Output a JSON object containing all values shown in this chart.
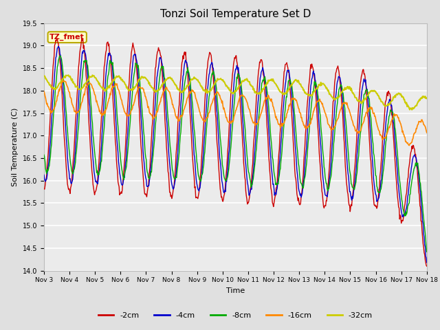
{
  "title": "Tonzi Soil Temperature Set D",
  "xlabel": "Time",
  "ylabel": "Soil Temperature (C)",
  "ylim": [
    14.0,
    19.5
  ],
  "yticks": [
    14.0,
    14.5,
    15.0,
    15.5,
    16.0,
    16.5,
    17.0,
    17.5,
    18.0,
    18.5,
    19.0,
    19.5
  ],
  "xtick_labels": [
    "Nov 3",
    "Nov 4",
    "Nov 5",
    "Nov 6",
    "Nov 7",
    "Nov 8",
    "Nov 9",
    "Nov 10",
    "Nov 11",
    "Nov 12",
    "Nov 13",
    "Nov 14",
    "Nov 15",
    "Nov 16",
    "Nov 17",
    "Nov 18"
  ],
  "legend_labels": [
    "-2cm",
    "-4cm",
    "-8cm",
    "-16cm",
    "-32cm"
  ],
  "legend_colors": [
    "#cc0000",
    "#0000cc",
    "#00aa00",
    "#ff8800",
    "#cccc00"
  ],
  "annotation_text": "TZ_fmet",
  "annotation_color": "#cc0000",
  "annotation_bg": "#ffffcc",
  "annotation_border": "#bbaa00",
  "background_color": "#e0e0e0",
  "plot_bg_color": "#ebebeb",
  "title_fontsize": 11,
  "n_days": 15,
  "samples_per_day": 48
}
